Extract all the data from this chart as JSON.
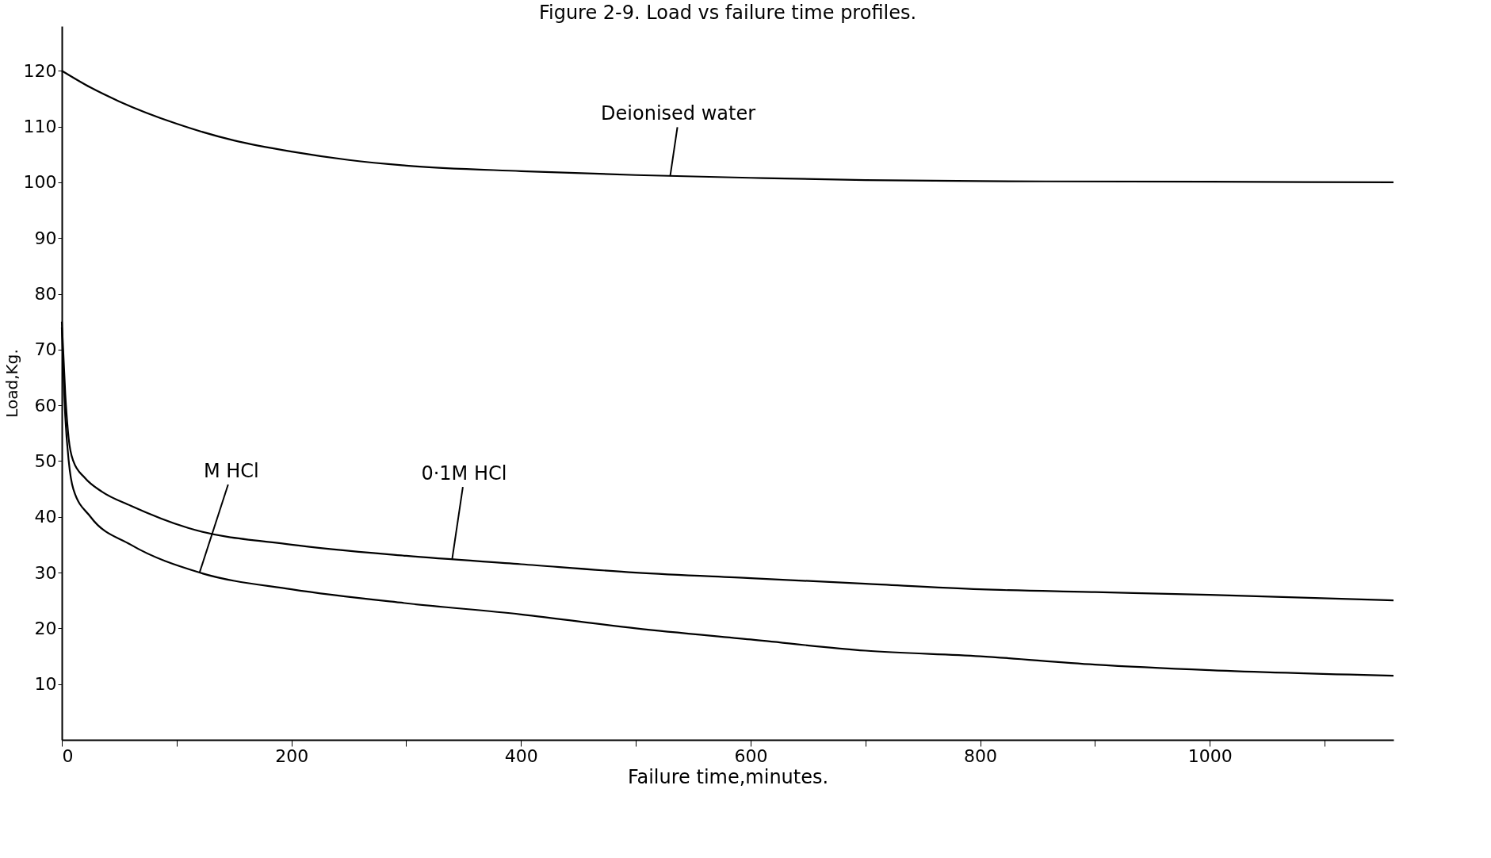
{
  "chart_data": {
    "type": "line",
    "title": "Figure 2-9. Load vs failure time profiles.",
    "xlabel": "Failure time,minutes.",
    "ylabel": "Load,Kg.",
    "xlim": [
      0,
      1160
    ],
    "ylim": [
      0,
      128
    ],
    "xticks": [
      0,
      {
        "value": 100,
        "label": null
      },
      200,
      {
        "value": 300,
        "label": null
      },
      400,
      {
        "value": 500,
        "label": null
      },
      600,
      {
        "value": 700,
        "label": null
      },
      800,
      {
        "value": 900,
        "label": null
      },
      1000,
      {
        "value": 1100,
        "label": null
      }
    ],
    "yticks": [
      10,
      20,
      30,
      40,
      50,
      60,
      70,
      80,
      90,
      100,
      110,
      120
    ],
    "grid": false,
    "marker": "none",
    "line_style": "solid",
    "series": [
      {
        "color": "#000000",
        "x": [
          0,
          25,
          50,
          100,
          150,
          200,
          250,
          300,
          400,
          500,
          600,
          700,
          800,
          1000,
          1160
        ],
        "values": [
          120,
          117,
          114.5,
          110.5,
          107.5,
          105.5,
          104,
          103,
          102,
          101.3,
          100.8,
          100.4,
          100.2,
          100.1,
          100
        ]
      },
      {
        "color": "#000000",
        "x": [
          0,
          3,
          6,
          10,
          20,
          35,
          60,
          110,
          200,
          300,
          400,
          500,
          600,
          700,
          800,
          900,
          1000,
          1160
        ],
        "values": [
          75,
          62,
          54,
          50,
          47,
          44.5,
          42,
          38,
          35,
          33,
          31.5,
          30,
          29,
          28,
          27,
          26.5,
          26,
          25
        ]
      },
      {
        "color": "#000000",
        "x": [
          0,
          3,
          6,
          10,
          25,
          60,
          120,
          200,
          300,
          400,
          500,
          600,
          700,
          800,
          900,
          1000,
          1160
        ],
        "values": [
          74,
          58,
          50,
          45,
          40,
          35,
          30,
          27,
          24.5,
          22.5,
          20,
          18,
          16,
          15,
          13.5,
          12.5,
          11.5
        ]
      }
    ],
    "annotations": [
      {
        "text": "Deionised water",
        "x": 530,
        "y": 101.2
      },
      {
        "text": "M HCl",
        "x": 120,
        "y": 30
      },
      {
        "text": "0·1M HCl",
        "x": 340,
        "y": 32.4
      }
    ]
  }
}
